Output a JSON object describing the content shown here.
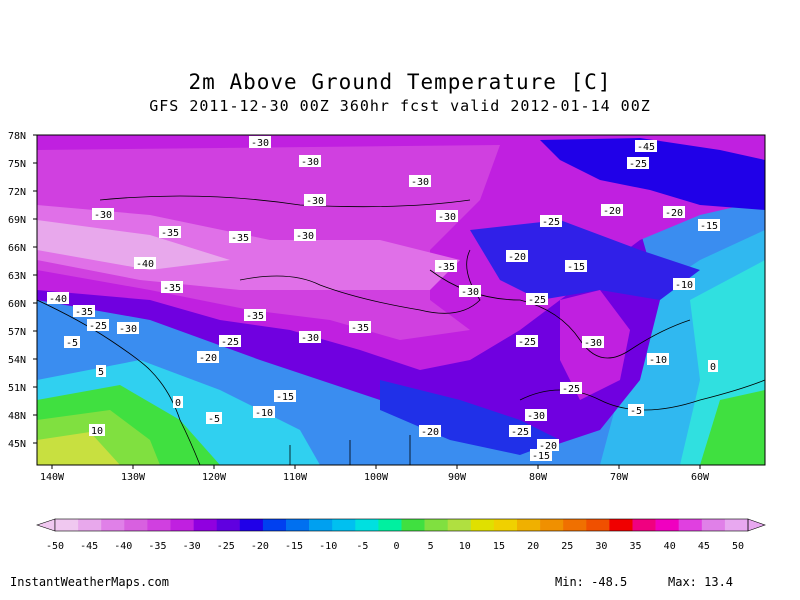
{
  "title": "2m Above Ground Temperature [C]",
  "subtitle": "GFS 2011-12-30 00Z 360hr fcst valid 2012-01-14 00Z",
  "lat_labels": [
    "78N",
    "75N",
    "72N",
    "69N",
    "66N",
    "63N",
    "60N",
    "57N",
    "54N",
    "51N",
    "48N",
    "45N"
  ],
  "lon_labels": [
    "140W",
    "130W",
    "120W",
    "110W",
    "100W",
    "90W",
    "80W",
    "70W",
    "60W"
  ],
  "contour_labels": [
    "-30",
    "-30",
    "-30",
    "-30",
    "-30",
    "-30",
    "-30",
    "-30",
    "-30",
    "-30",
    "-30",
    "-30",
    "-35",
    "-35",
    "-35",
    "-35",
    "-35",
    "-35",
    "-35",
    "-40",
    "-40",
    "-45",
    "-25",
    "-25",
    "-25",
    "-25",
    "-25",
    "-25",
    "-25",
    "-25",
    "-20",
    "-20",
    "-20",
    "-20",
    "-20",
    "-20",
    "-15",
    "-15",
    "-15",
    "-15",
    "-10",
    "-10",
    "-10",
    "-5",
    "-5",
    "-5",
    "5",
    "10",
    "0",
    "0"
  ],
  "colorbar": {
    "ticks": [
      "-50",
      "-45",
      "-40",
      "-35",
      "-30",
      "-25",
      "-20",
      "-15",
      "-10",
      "-5",
      "0",
      "5",
      "10",
      "15",
      "20",
      "25",
      "30",
      "35",
      "40",
      "45",
      "50"
    ],
    "colors": [
      "#f0c8f0",
      "#e8a8ec",
      "#e080e8",
      "#d860e0",
      "#d040e0",
      "#c020e0",
      "#9000e0",
      "#6000e0",
      "#2000e8",
      "#0040f0",
      "#0070f0",
      "#00a0f0",
      "#00c0f0",
      "#00e0e0",
      "#00f0a0",
      "#40e040",
      "#80e040",
      "#b0e040",
      "#e0e000",
      "#f0d000",
      "#f0b000",
      "#f09000",
      "#f07000",
      "#f05000",
      "#f00000",
      "#f00080",
      "#f000c0",
      "#e040e0",
      "#e080e8",
      "#e8a8f0"
    ]
  },
  "footer": {
    "site": "InstantWeatherMaps.com",
    "min": "Min: -48.5",
    "max": "Max: 13.4"
  },
  "colors": {
    "deep_cold": "#d040e0",
    "cold": "#2000e8",
    "mild": "#00c0f0",
    "warm": "#80e040"
  }
}
